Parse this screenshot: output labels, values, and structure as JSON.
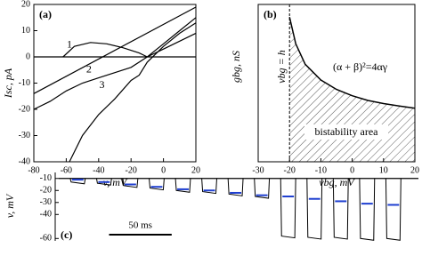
{
  "chart_data": [
    {
      "type": "line",
      "panel_label": "(a)",
      "xlabel": "v, mV",
      "ylabel": "Isc, pA",
      "xlim": [
        -80,
        20
      ],
      "xticks": [
        -80,
        -60,
        -40,
        -20,
        0,
        20
      ],
      "ylim": [
        -40,
        20
      ],
      "yticks": [
        -40,
        -30,
        -20,
        -10,
        0,
        10,
        20
      ],
      "hline": 0,
      "series": [
        {
          "name": "1",
          "color": "#000000",
          "x": [
            -62,
            -55,
            -45,
            -35,
            -25,
            -15,
            -10,
            0,
            10,
            20
          ],
          "values": [
            0,
            4,
            5.5,
            5,
            3.5,
            1.5,
            0,
            3,
            6,
            9
          ]
        },
        {
          "name": "2",
          "color": "#000000",
          "x": [
            -80,
            -70,
            -60,
            -50,
            -40,
            -30,
            -20,
            -10,
            0,
            10,
            20
          ],
          "values": [
            -20,
            -17,
            -13,
            -10,
            -8,
            -6,
            -4,
            0,
            5,
            10,
            15
          ]
        },
        {
          "name": "3",
          "color": "#000000",
          "x": [
            -58,
            -50,
            -40,
            -30,
            -20,
            -15,
            -10,
            0,
            10,
            20
          ],
          "values": [
            -40,
            -30,
            -22,
            -16,
            -9,
            -7,
            -2,
            4,
            9,
            13
          ]
        },
        {
          "color": "#000000",
          "x": [
            -80,
            20
          ],
          "values": [
            -14,
            19
          ]
        }
      ]
    },
    {
      "type": "area",
      "panel_label": "(b)",
      "xlabel": "vbg, mV",
      "ylabel": "gbg, nS",
      "xlim": [
        -30,
        20
      ],
      "xticks": [
        -30,
        -20,
        -10,
        0,
        10,
        20
      ],
      "ylim": [
        0,
        1
      ],
      "vline": -20,
      "vline_label": "vbg = h",
      "curve_label": "(α + β)²=4αγ",
      "area_label": "bistability area",
      "x": [
        -20,
        -18,
        -15,
        -10,
        -5,
        0,
        5,
        10,
        15,
        20
      ],
      "values": [
        0.92,
        0.75,
        0.62,
        0.52,
        0.46,
        0.42,
        0.39,
        0.37,
        0.355,
        0.34
      ]
    },
    {
      "type": "pulses",
      "panel_label": "(c)",
      "ylabel": "v, mV",
      "xlim": [
        0,
        290
      ],
      "ylim": [
        -62,
        -5
      ],
      "yticks": [
        -60,
        -40,
        -30,
        -20,
        -10
      ],
      "baseline": -10,
      "pulse_width": 12,
      "marker_color": "#1f3fd0",
      "scalebar": 50,
      "scalebar_label": "50 ms",
      "x": [
        12,
        33,
        54,
        75,
        96,
        117,
        138,
        159,
        180,
        201,
        222,
        243,
        264
      ],
      "values": [
        -13,
        -14,
        -16,
        -18,
        -20,
        -21,
        -23,
        -25,
        -58,
        -59,
        -59,
        -60,
        -60
      ],
      "markers": [
        -11,
        -13,
        -15,
        -17,
        -19,
        -20,
        -22,
        -24,
        -25,
        -27,
        -29,
        -31,
        -32
      ]
    }
  ]
}
